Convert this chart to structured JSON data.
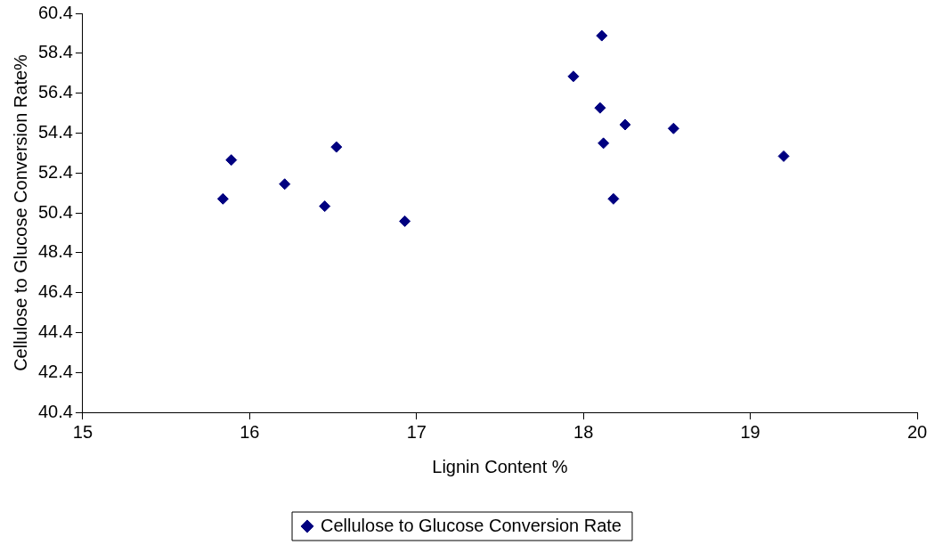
{
  "chart_data": {
    "type": "scatter",
    "xlabel": "Lignin Content %",
    "ylabel": "Cellulose to Glucose Conversion Rate%",
    "series": [
      {
        "name": "Cellulose to Glucose Conversion Rate",
        "color": "#000080",
        "x": [
          15.84,
          15.89,
          16.21,
          16.45,
          16.52,
          16.93,
          17.94,
          18.11,
          18.1,
          18.25,
          18.12,
          18.18,
          18.54,
          19.2
        ],
        "values": [
          51.1,
          53.05,
          51.84,
          50.73,
          53.7,
          49.98,
          57.24,
          59.28,
          55.66,
          54.82,
          53.89,
          51.1,
          54.63,
          53.24
        ]
      }
    ],
    "xlim": [
      15,
      20
    ],
    "xticks": [
      15,
      16,
      17,
      18,
      19,
      20
    ],
    "ylim": [
      40.4,
      60.4
    ],
    "yticks": [
      40.4,
      42.4,
      44.4,
      46.4,
      48.4,
      50.4,
      52.4,
      54.4,
      56.4,
      58.4,
      60.4
    ],
    "grid": false,
    "legend": "bottom",
    "marker": "diamond"
  }
}
